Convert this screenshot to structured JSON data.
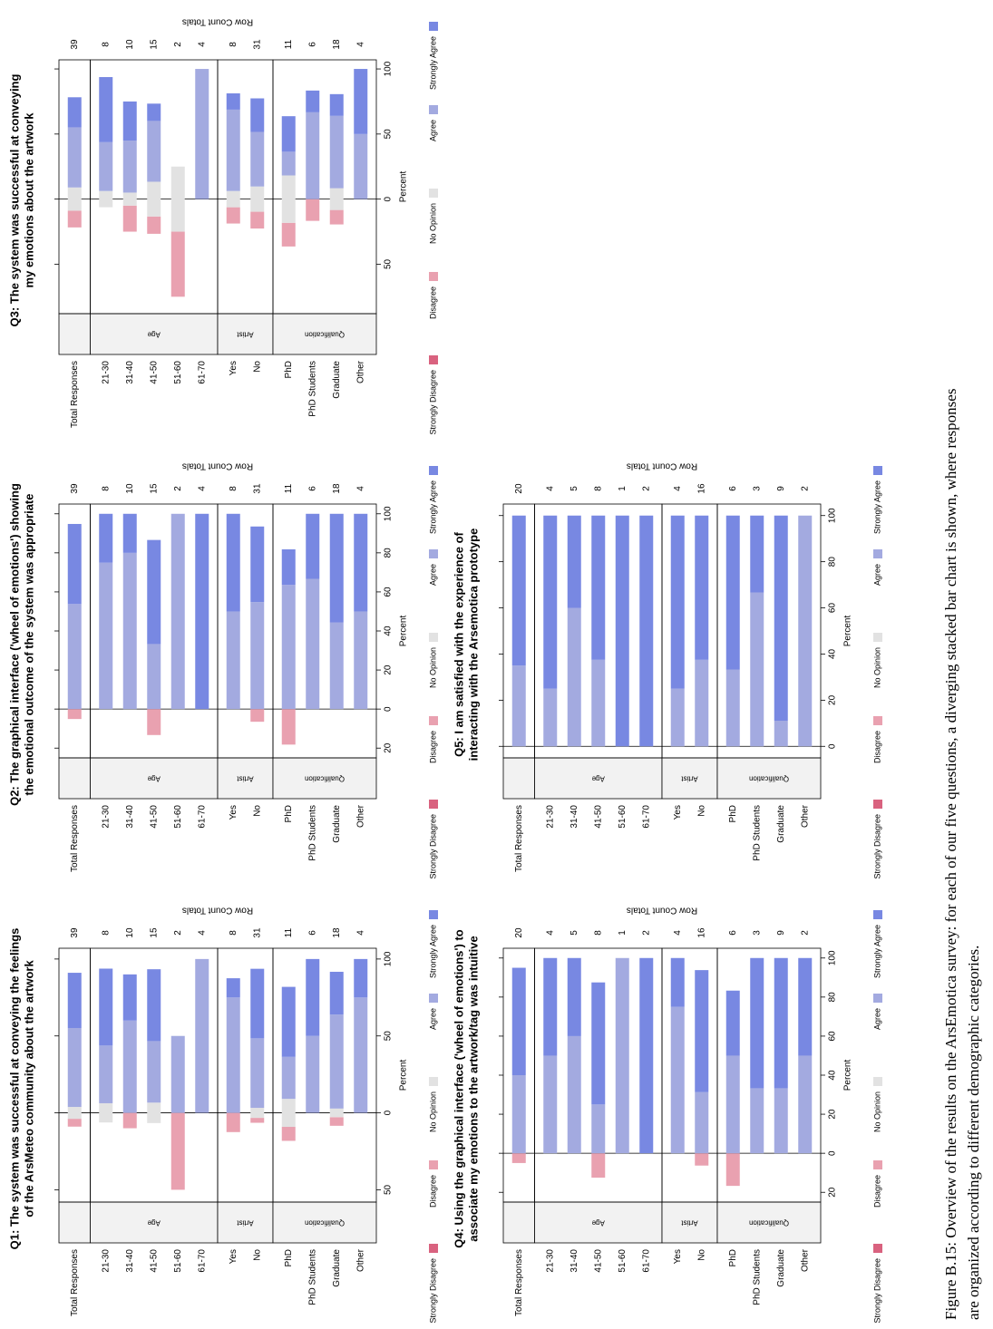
{
  "chart_data": [
    {
      "type": "diverging_bar",
      "title": [
        "Q1: The system was successful at conveying the feelings",
        "of the ArsMeteo community about the artwork"
      ],
      "panels": [
        {
          "name": null,
          "categories": [
            "Total Responses"
          ]
        },
        {
          "name": "Age",
          "categories": [
            "21-30",
            "31-40",
            "41-50",
            "51-60",
            "61-70"
          ]
        },
        {
          "name": "Artist",
          "categories": [
            "Yes",
            "No"
          ]
        },
        {
          "name": "Qualification",
          "categories": [
            "PhD",
            "PhD Students",
            "Graduate",
            "Other"
          ]
        }
      ],
      "row_counts": [
        39,
        8,
        10,
        15,
        2,
        4,
        8,
        31,
        11,
        6,
        18,
        4
      ],
      "row_counts_label": "Row Count Totals",
      "xlabel": "Percent",
      "xlim": [
        -58,
        107
      ],
      "xticks": [
        {
          "value": -50,
          "label": "50"
        },
        0,
        50,
        100
      ],
      "series": [
        {
          "name": "Strongly Disagree",
          "color": "#d9627f",
          "values": [
            0,
            0,
            0,
            0,
            0,
            0,
            0,
            0,
            0,
            0,
            0,
            0
          ]
        },
        {
          "name": "Disagree",
          "color": "#e9a1b0",
          "values": [
            5.1,
            0,
            10,
            0,
            50,
            0,
            12.5,
            3.2,
            9.1,
            0,
            5.6,
            0
          ]
        },
        {
          "name": "No Opinion",
          "color": "#e2e2e2",
          "values": [
            7.7,
            12.5,
            0,
            13.3,
            0,
            0,
            0,
            6.5,
            18.2,
            0,
            5.6,
            0
          ]
        },
        {
          "name": "Agree",
          "color": "#a3aae0",
          "values": [
            51.3,
            37.5,
            60,
            40,
            50,
            100,
            75,
            45.2,
            27.3,
            50,
            61.1,
            75
          ]
        },
        {
          "name": "Strongly Agree",
          "color": "#7888e2",
          "values": [
            35.9,
            50,
            30,
            46.7,
            0,
            0,
            12.5,
            45.2,
            45.5,
            50,
            27.8,
            25
          ]
        }
      ]
    },
    {
      "type": "diverging_bar",
      "title": [
        "Q2: The graphical interface ('wheel of emotions') showing",
        "the emotional outcome of the system was appropriate"
      ],
      "panels": [
        {
          "name": null,
          "categories": [
            "Total Responses"
          ]
        },
        {
          "name": "Age",
          "categories": [
            "21-30",
            "31-40",
            "41-50",
            "51-60",
            "61-70"
          ]
        },
        {
          "name": "Artist",
          "categories": [
            "Yes",
            "No"
          ]
        },
        {
          "name": "Qualification",
          "categories": [
            "PhD",
            "PhD Students",
            "Graduate",
            "Other"
          ]
        }
      ],
      "row_counts": [
        39,
        8,
        10,
        15,
        2,
        4,
        8,
        31,
        11,
        6,
        18,
        4
      ],
      "row_counts_label": "Row Count Totals",
      "xlabel": "Percent",
      "xlim": [
        -25,
        105
      ],
      "xticks": [
        {
          "value": -20,
          "label": "20"
        },
        0,
        20,
        40,
        60,
        80,
        100
      ],
      "series": [
        {
          "name": "Strongly Disagree",
          "color": "#d9627f",
          "values": [
            0,
            0,
            0,
            0,
            0,
            0,
            0,
            0,
            0,
            0,
            0,
            0
          ]
        },
        {
          "name": "Disagree",
          "color": "#e9a1b0",
          "values": [
            5.1,
            0,
            0,
            13.3,
            0,
            0,
            0,
            6.5,
            18.2,
            0,
            0,
            0
          ]
        },
        {
          "name": "No Opinion",
          "color": "#e2e2e2",
          "values": [
            0,
            0,
            0,
            0,
            0,
            0,
            0,
            0,
            0,
            0,
            0,
            0
          ]
        },
        {
          "name": "Agree",
          "color": "#a3aae0",
          "values": [
            53.8,
            75,
            80,
            33.3,
            100,
            0,
            50,
            54.8,
            63.6,
            66.7,
            44.4,
            50
          ]
        },
        {
          "name": "Strongly Agree",
          "color": "#7888e2",
          "values": [
            41,
            25,
            20,
            53.3,
            0,
            100,
            50,
            38.7,
            18.2,
            33.3,
            55.6,
            50
          ]
        }
      ]
    },
    {
      "type": "diverging_bar",
      "title": [
        "Q3: The system was successful at conveying",
        "my emotions about the artwork"
      ],
      "panels": [
        {
          "name": null,
          "categories": [
            "Total Responses"
          ]
        },
        {
          "name": "Age",
          "categories": [
            "21-30",
            "31-40",
            "41-50",
            "51-60",
            "61-70"
          ]
        },
        {
          "name": "Artist",
          "categories": [
            "Yes",
            "No"
          ]
        },
        {
          "name": "Qualification",
          "categories": [
            "PhD",
            "PhD Students",
            "Graduate",
            "Other"
          ]
        }
      ],
      "row_counts": [
        39,
        8,
        10,
        15,
        2,
        4,
        8,
        31,
        11,
        6,
        18,
        4
      ],
      "row_counts_label": "Row Count Totals",
      "xlabel": "Percent",
      "xlim": [
        -88,
        107
      ],
      "xticks": [
        {
          "value": -50,
          "label": "50"
        },
        0,
        50,
        100
      ],
      "series": [
        {
          "name": "Strongly Disagree",
          "color": "#d9627f",
          "values": [
            0,
            0,
            0,
            0,
            0,
            0,
            0,
            0,
            0,
            0,
            0,
            0
          ]
        },
        {
          "name": "Disagree",
          "color": "#e9a1b0",
          "values": [
            12.8,
            0,
            20,
            13.3,
            50,
            0,
            12.5,
            12.9,
            18.2,
            16.7,
            11.1,
            0
          ]
        },
        {
          "name": "No Opinion",
          "color": "#e2e2e2",
          "values": [
            17.9,
            12.5,
            10,
            26.7,
            50,
            0,
            12.5,
            19.4,
            36.4,
            0,
            16.7,
            0
          ]
        },
        {
          "name": "Agree",
          "color": "#a3aae0",
          "values": [
            46.2,
            37.5,
            40,
            46.7,
            0,
            100,
            62.5,
            41.9,
            18.2,
            66.7,
            55.6,
            50
          ]
        },
        {
          "name": "Strongly Agree",
          "color": "#7888e2",
          "values": [
            23.1,
            50,
            30,
            13.3,
            0,
            0,
            12.5,
            25.8,
            27.3,
            16.7,
            16.7,
            50
          ]
        }
      ]
    },
    {
      "type": "diverging_bar",
      "title": [
        "Q4: Using the graphical interface ('wheel of emotions') to",
        "associate my emotions to the artwork/tag was intuitive"
      ],
      "panels": [
        {
          "name": null,
          "categories": [
            "Total Responses"
          ]
        },
        {
          "name": "Age",
          "categories": [
            "21-30",
            "31-40",
            "41-50",
            "51-60",
            "61-70"
          ]
        },
        {
          "name": "Artist",
          "categories": [
            "Yes",
            "No"
          ]
        },
        {
          "name": "Qualification",
          "categories": [
            "PhD",
            "PhD Students",
            "Graduate",
            "Other"
          ]
        }
      ],
      "row_counts": [
        20,
        4,
        5,
        8,
        1,
        2,
        4,
        16,
        6,
        3,
        9,
        2
      ],
      "row_counts_label": "Row Count Totals",
      "xlabel": "Percent",
      "xlim": [
        -25,
        105
      ],
      "xticks": [
        {
          "value": -20,
          "label": "20"
        },
        0,
        20,
        40,
        60,
        80,
        100
      ],
      "series": [
        {
          "name": "Strongly Disagree",
          "color": "#d9627f",
          "values": [
            0,
            0,
            0,
            0,
            0,
            0,
            0,
            0,
            0,
            0,
            0,
            0
          ]
        },
        {
          "name": "Disagree",
          "color": "#e9a1b0",
          "values": [
            5,
            0,
            0,
            12.5,
            0,
            0,
            0,
            6.3,
            16.7,
            0,
            0,
            0
          ]
        },
        {
          "name": "No Opinion",
          "color": "#e2e2e2",
          "values": [
            0,
            0,
            0,
            0,
            0,
            0,
            0,
            0,
            0,
            0,
            0,
            0
          ]
        },
        {
          "name": "Agree",
          "color": "#a3aae0",
          "values": [
            40,
            50,
            60,
            25,
            100,
            0,
            75,
            31.3,
            50,
            33.3,
            33.3,
            50
          ]
        },
        {
          "name": "Strongly Agree",
          "color": "#7888e2",
          "values": [
            55,
            50,
            40,
            62.5,
            0,
            100,
            25,
            62.5,
            33.3,
            66.7,
            66.7,
            50
          ]
        }
      ]
    },
    {
      "type": "diverging_bar",
      "title": [
        "Q5: I am satisfied with the experience of",
        "interacting with the Arsemotica prototype"
      ],
      "panels": [
        {
          "name": null,
          "categories": [
            "Total Responses"
          ]
        },
        {
          "name": "Age",
          "categories": [
            "21-30",
            "31-40",
            "41-50",
            "51-60",
            "61-70"
          ]
        },
        {
          "name": "Artist",
          "categories": [
            "Yes",
            "No"
          ]
        },
        {
          "name": "Qualification",
          "categories": [
            "PhD",
            "PhD Students",
            "Graduate",
            "Other"
          ]
        }
      ],
      "row_counts": [
        20,
        4,
        5,
        8,
        1,
        2,
        4,
        16,
        6,
        3,
        9,
        2
      ],
      "row_counts_label": "Row Count Totals",
      "xlabel": "Percent",
      "xlim": [
        -5,
        105
      ],
      "xticks": [
        0,
        20,
        40,
        60,
        80,
        100
      ],
      "series": [
        {
          "name": "Strongly Disagree",
          "color": "#d9627f",
          "values": [
            0,
            0,
            0,
            0,
            0,
            0,
            0,
            0,
            0,
            0,
            0,
            0
          ]
        },
        {
          "name": "Disagree",
          "color": "#e9a1b0",
          "values": [
            0,
            0,
            0,
            0,
            0,
            0,
            0,
            0,
            0,
            0,
            0,
            0
          ]
        },
        {
          "name": "No Opinion",
          "color": "#e2e2e2",
          "values": [
            0,
            0,
            0,
            0,
            0,
            0,
            0,
            0,
            0,
            0,
            0,
            0
          ]
        },
        {
          "name": "Agree",
          "color": "#a3aae0",
          "values": [
            35,
            25,
            60,
            37.5,
            0,
            0,
            25,
            37.5,
            33.3,
            66.7,
            11.1,
            100
          ]
        },
        {
          "name": "Strongly Agree",
          "color": "#7888e2",
          "values": [
            65,
            75,
            40,
            62.5,
            100,
            100,
            75,
            62.5,
            66.7,
            33.3,
            88.9,
            0
          ]
        }
      ]
    }
  ],
  "caption": [
    "Figure B.15: Overview of the results on the ArsEmotica survey:  for each of our five questions, a diverging stacked bar chart is shown, where responses",
    "are organized according to different demographic categories."
  ]
}
